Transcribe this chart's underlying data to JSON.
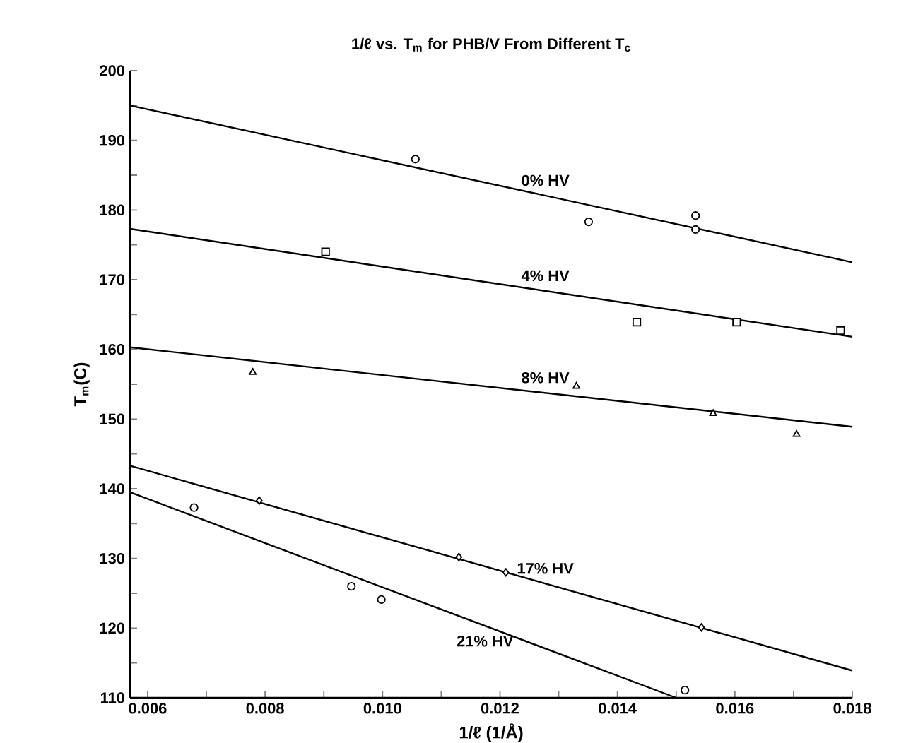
{
  "chart_data": {
    "type": "scatter",
    "title": "1/ℓ vs. T$_{m}$ for PHB/V From Different T$_{c}$",
    "xlabel": "1/ℓ (1/Å)",
    "ylabel": "T$_{m}$(C)",
    "xlim": [
      0.0057,
      0.018
    ],
    "xticks": [
      0.006,
      {
        "value": 0.007,
        "label": null
      },
      0.008,
      {
        "value": 0.009,
        "label": null
      },
      {
        "value": 0.01,
        "label": "0.010"
      },
      {
        "value": 0.011,
        "label": null
      },
      0.012,
      {
        "value": 0.013,
        "label": null
      },
      0.014,
      {
        "value": 0.015,
        "label": null
      },
      0.016,
      {
        "value": 0.017,
        "label": null
      },
      0.018
    ],
    "ylim": [
      110,
      200
    ],
    "yticks": [
      110,
      {
        "value": 115,
        "label": null
      },
      120,
      {
        "value": 125,
        "label": null
      },
      130,
      {
        "value": 135,
        "label": null
      },
      140,
      {
        "value": 145,
        "label": null
      },
      150,
      {
        "value": 155,
        "label": null
      },
      160,
      {
        "value": 165,
        "label": null
      },
      170,
      {
        "value": 175,
        "label": null
      },
      180,
      {
        "value": 185,
        "label": null
      },
      190,
      {
        "value": 195,
        "label": null
      },
      200
    ],
    "series": [
      {
        "marker": "circle",
        "color": "#000000",
        "x": [
          0.01056,
          0.01351,
          0.01533,
          0.01533
        ],
        "values": [
          187.3,
          178.3,
          179.2,
          177.2
        ]
      },
      {
        "type": "line",
        "name": "0% HV",
        "marker": "none",
        "color": "#000000",
        "x": [
          0.0057,
          0.018
        ],
        "values": [
          195.0,
          172.5
        ]
      },
      {
        "marker": "square",
        "color": "#000000",
        "x": [
          0.00903,
          0.01433,
          0.01603,
          0.0178
        ],
        "values": [
          174.0,
          163.9,
          163.9,
          162.7
        ]
      },
      {
        "type": "line",
        "name": "4% HV",
        "marker": "none",
        "color": "#000000",
        "x": [
          0.0057,
          0.018
        ],
        "values": [
          177.3,
          161.8
        ]
      },
      {
        "marker": "triangle",
        "color": "#000000",
        "x": [
          0.00779,
          0.0133,
          0.01563,
          0.01705
        ],
        "values": [
          156.7,
          154.7,
          150.8,
          147.8
        ]
      },
      {
        "type": "line",
        "name": "8% HV",
        "marker": "none",
        "color": "#000000",
        "x": [
          0.0057,
          0.018
        ],
        "values": [
          160.3,
          148.9
        ]
      },
      {
        "marker": "diamond",
        "color": "#000000",
        "x": [
          0.0079,
          0.0113,
          0.0121,
          0.01543
        ],
        "values": [
          138.3,
          130.2,
          128.0,
          120.1
        ]
      },
      {
        "type": "line",
        "name": "17% HV",
        "marker": "none",
        "color": "#000000",
        "x": [
          0.0057,
          0.018
        ],
        "values": [
          143.3,
          113.9
        ]
      },
      {
        "marker": "circle",
        "color": "#000000",
        "x": [
          0.00679,
          0.00947,
          0.00998,
          0.01515
        ],
        "values": [
          137.3,
          126.0,
          124.1,
          111.1
        ]
      },
      {
        "type": "line",
        "name": "21% HV",
        "marker": "none",
        "color": "#000000",
        "x": [
          0.0057,
          0.015
        ],
        "values": [
          139.5,
          110
        ]
      }
    ]
  }
}
